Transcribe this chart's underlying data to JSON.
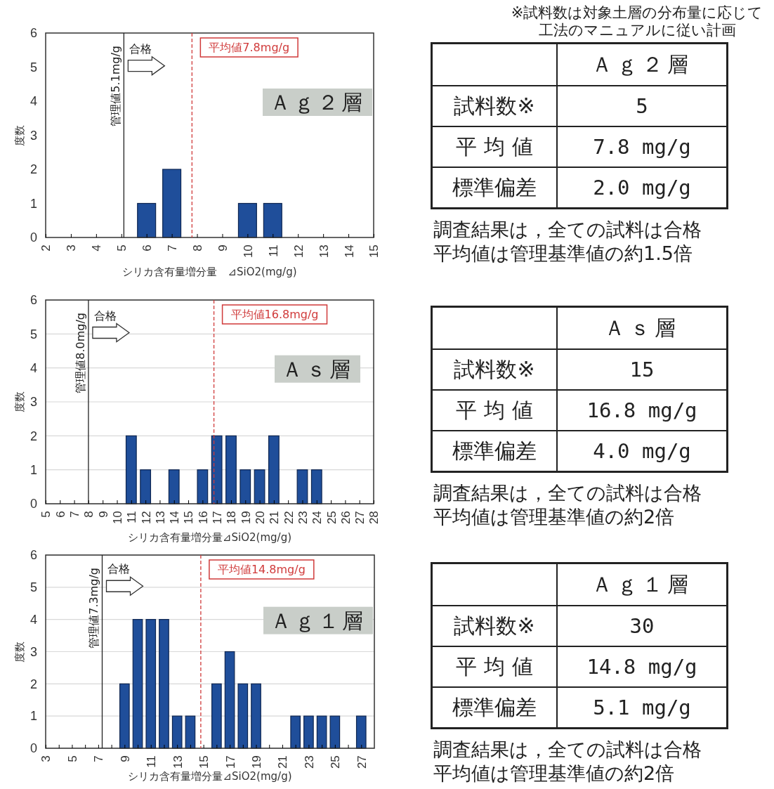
{
  "chart_data": [
    {
      "type": "bar",
      "ylabel": "度数",
      "xlabel": "シリカ含有量増分量　⊿SiO2(mg/g)",
      "x": [
        6,
        7,
        10,
        11
      ],
      "values": [
        1,
        2,
        1,
        1
      ],
      "color": "#1f4e9a",
      "xlim": [
        2,
        15
      ],
      "xticks": [
        2,
        3,
        4,
        5,
        6,
        7,
        8,
        9,
        10,
        11,
        12,
        13,
        14,
        15
      ],
      "ylim": [
        0,
        6
      ],
      "yticks": [
        0,
        1,
        2,
        3,
        4,
        5,
        6
      ],
      "grid": false,
      "ref_lines": [
        {
          "axis": "x",
          "value": 5.1,
          "label": "管理値5.1mg/g",
          "color": "#222222",
          "line_style": "solid"
        },
        {
          "axis": "x",
          "value": 7.8,
          "label": "平均値7.8mg/g",
          "color": "#d03a3a",
          "line_style": "dashed"
        }
      ],
      "annotations": [
        "合格",
        "Ａｇ２層"
      ]
    },
    {
      "type": "other",
      "subtitle": "※試料数は対象土層の分布量に応じて工法のマニュアルに従い計画",
      "title": "Ａｇ２層",
      "categories": [
        "試料数※",
        "平 均 値",
        "標準偏差"
      ],
      "value_labels": [
        "5",
        "7.8 mg/g",
        "2.0 mg/g"
      ],
      "annotations": [
        "調査結果は，全ての試料は合格",
        "平均値は管理基準値の約1.5倍"
      ]
    },
    {
      "type": "bar",
      "ylabel": "度数",
      "xlabel": "シリカ含有量増分量⊿SiO2(mg/g)",
      "x": [
        11,
        12,
        14,
        16,
        17,
        18,
        19,
        20,
        21,
        23,
        24
      ],
      "values": [
        2,
        1,
        1,
        1,
        2,
        2,
        1,
        1,
        2,
        1,
        1
      ],
      "color": "#1f4e9a",
      "xlim": [
        5,
        28
      ],
      "xticks": [
        5,
        6,
        7,
        8,
        9,
        10,
        11,
        12,
        13,
        14,
        15,
        16,
        17,
        18,
        19,
        20,
        21,
        22,
        23,
        24,
        25,
        26,
        27,
        28
      ],
      "ylim": [
        0,
        6
      ],
      "yticks": [
        0,
        1,
        2,
        3,
        4,
        5,
        6
      ],
      "grid": "y",
      "ref_lines": [
        {
          "axis": "x",
          "value": 8.0,
          "label": "管理値8.0mg/g",
          "color": "#222222",
          "line_style": "solid"
        },
        {
          "axis": "x",
          "value": 16.8,
          "label": "平均値16.8mg/g",
          "color": "#d03a3a",
          "line_style": "dashed"
        }
      ],
      "annotations": [
        "合格",
        "Ａｓ層"
      ]
    },
    {
      "type": "other",
      "title": "Ａｓ層",
      "categories": [
        "試料数※",
        "平 均 値",
        "標準偏差"
      ],
      "value_labels": [
        "15",
        "16.8 mg/g",
        "4.0 mg/g"
      ],
      "annotations": [
        "調査結果は，全ての試料は合格",
        "平均値は管理基準値の約2倍"
      ]
    },
    {
      "type": "bar",
      "ylabel": "度数",
      "xlabel": "シリカ含有量増分量⊿SiO2(mg/g)",
      "x": [
        9,
        10,
        11,
        12,
        13,
        14,
        16,
        17,
        18,
        19,
        22,
        23,
        24,
        25,
        27
      ],
      "values": [
        2,
        4,
        4,
        4,
        1,
        1,
        2,
        3,
        2,
        2,
        1,
        1,
        1,
        1,
        1
      ],
      "color": "#1f4e9a",
      "xlim": [
        3,
        28
      ],
      "xticks": [
        3,
        {
          "value": 4,
          "label": null
        },
        5,
        {
          "value": 6,
          "label": null
        },
        7,
        {
          "value": 8,
          "label": null
        },
        9,
        {
          "value": 10,
          "label": null
        },
        11,
        {
          "value": 12,
          "label": null
        },
        13,
        {
          "value": 14,
          "label": null
        },
        15,
        {
          "value": 16,
          "label": null
        },
        17,
        {
          "value": 18,
          "label": null
        },
        19,
        {
          "value": 20,
          "label": null
        },
        21,
        {
          "value": 22,
          "label": null
        },
        23,
        {
          "value": 24,
          "label": null
        },
        25,
        {
          "value": 26,
          "label": null
        },
        27
      ],
      "ylim": [
        0,
        6
      ],
      "yticks": [
        0,
        1,
        2,
        3,
        4,
        5,
        6
      ],
      "grid": "y",
      "ref_lines": [
        {
          "axis": "x",
          "value": 7.3,
          "label": "管理値7.3mg/g",
          "color": "#222222",
          "line_style": "solid"
        },
        {
          "axis": "x",
          "value": 14.8,
          "label": "平均値14.8mg/g",
          "color": "#d03a3a",
          "line_style": "dashed"
        }
      ],
      "annotations": [
        "合格",
        "Ａｇ１層"
      ]
    },
    {
      "type": "other",
      "title": "Ａｇ１層",
      "categories": [
        "試料数※",
        "平 均 値",
        "標準偏差"
      ],
      "value_labels": [
        "30",
        "14.8 mg/g",
        "5.1 mg/g"
      ],
      "annotations": [
        "調査結果は，全ての試料は合格",
        "平均値は管理基準値の約2倍"
      ]
    }
  ]
}
